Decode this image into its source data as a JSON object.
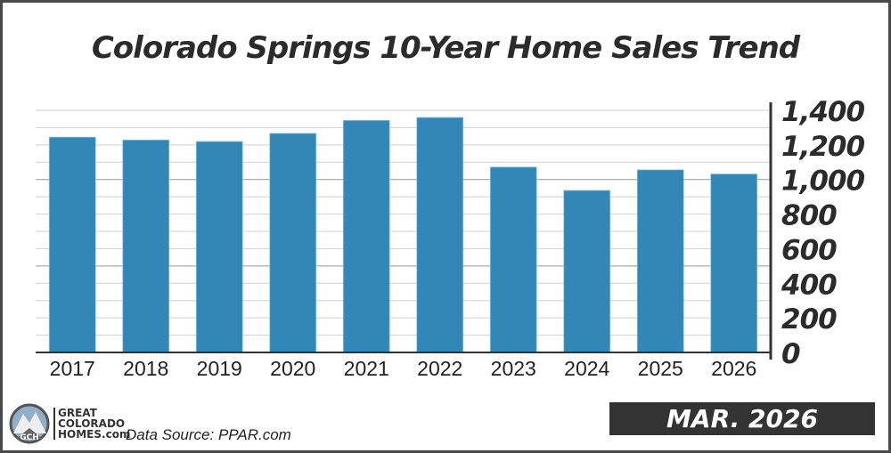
{
  "chart_data": {
    "type": "bar",
    "title": "Colorado Springs 10-Year Home Sales Trend",
    "categories": [
      "2017",
      "2018",
      "2019",
      "2020",
      "2021",
      "2022",
      "2023",
      "2024",
      "2025",
      "2026"
    ],
    "values": [
      1245,
      1229,
      1220,
      1267,
      1342,
      1359,
      1072,
      937,
      1056,
      1032
    ],
    "ylim": [
      0,
      1400
    ],
    "yticks": [
      "0",
      "200",
      "400",
      "600",
      "800",
      "1,000",
      "1,200",
      "1,400"
    ],
    "y_axis_position": "right",
    "grid": true,
    "bar_color": "#3387b6",
    "xlabel": "",
    "ylabel": ""
  },
  "footer": {
    "logo_lines": [
      "GREAT",
      "COLORADO",
      "HOMES.com"
    ],
    "logo_badge": "GCH",
    "source": "Data Source: PPAR.com",
    "date": "MAR. 2026"
  }
}
